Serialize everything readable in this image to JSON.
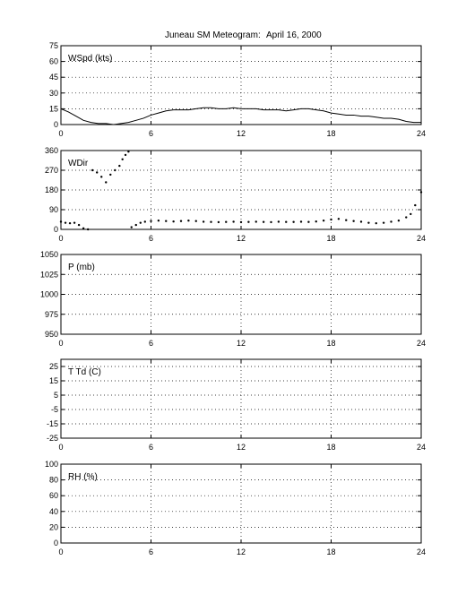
{
  "figure": {
    "title": "Juneau SM Meteogram:",
    "date": "April 16, 2000"
  },
  "chart_data": [
    {
      "type": "line",
      "label": "WSpd (kts)",
      "xlim": [
        0,
        24
      ],
      "ylim": [
        0,
        75
      ],
      "xticks": [
        0,
        6,
        12,
        18,
        24
      ],
      "yticks": [
        0,
        15,
        30,
        45,
        60,
        75
      ],
      "grid": true,
      "series": [
        {
          "x": [
            0,
            0.5,
            1,
            1.5,
            2,
            2.5,
            3,
            3.5,
            4,
            4.5,
            5,
            5.5,
            6,
            6.5,
            7,
            7.5,
            8,
            8.5,
            9,
            9.5,
            10,
            10.5,
            11,
            11.5,
            12,
            12.5,
            13,
            13.5,
            14,
            14.5,
            15,
            15.5,
            16,
            16.5,
            17,
            17.5,
            18,
            18.5,
            19,
            19.5,
            20,
            20.5,
            21,
            21.5,
            22,
            22.5,
            23,
            23.5,
            24
          ],
          "y": [
            15,
            12,
            8,
            4,
            2,
            1,
            1,
            0,
            1,
            2,
            4,
            6,
            9,
            11,
            13,
            14,
            14,
            14,
            15,
            16,
            16,
            15,
            15,
            16,
            15,
            15,
            15,
            14,
            14,
            14,
            13,
            14,
            15,
            15,
            14,
            13,
            11,
            10,
            9,
            9,
            8,
            8,
            7,
            6,
            6,
            5,
            3,
            2,
            2
          ]
        }
      ]
    },
    {
      "type": "scatter",
      "label": "WDir",
      "xlim": [
        0,
        24
      ],
      "ylim": [
        0,
        360
      ],
      "xticks": [
        0,
        6,
        12,
        18,
        24
      ],
      "yticks": [
        0,
        90,
        180,
        270,
        360
      ],
      "grid": true,
      "series": [
        {
          "x": [
            0,
            0.3,
            0.6,
            0.9,
            1.2,
            1.5,
            1.8,
            2.1,
            2.4,
            2.7,
            3.0,
            3.3,
            3.6,
            3.9,
            4.1,
            4.3,
            4.5,
            4.7,
            5.0,
            5.3,
            5.6,
            6.0,
            6.5,
            7,
            7.5,
            8,
            8.5,
            9,
            9.5,
            10,
            10.5,
            11,
            11.5,
            12,
            12.5,
            13,
            13.5,
            14,
            14.5,
            15,
            15.5,
            16,
            16.5,
            17,
            17.5,
            18,
            18.5,
            19,
            19.5,
            20,
            20.5,
            21,
            21.5,
            22,
            22.5,
            23,
            23.3,
            23.6,
            24
          ],
          "y": [
            35,
            30,
            28,
            30,
            20,
            5,
            0,
            270,
            260,
            240,
            215,
            250,
            270,
            290,
            320,
            340,
            355,
            10,
            20,
            30,
            35,
            38,
            40,
            38,
            36,
            38,
            40,
            38,
            35,
            34,
            33,
            34,
            35,
            33,
            34,
            35,
            34,
            33,
            35,
            34,
            34,
            35,
            34,
            36,
            40,
            45,
            48,
            42,
            38,
            35,
            30,
            28,
            30,
            35,
            40,
            55,
            70,
            110,
            170
          ]
        }
      ]
    },
    {
      "type": "line",
      "label": "P (mb)",
      "xlim": [
        0,
        24
      ],
      "ylim": [
        950,
        1050
      ],
      "xticks": [
        0,
        6,
        12,
        18,
        24
      ],
      "yticks": [
        950,
        975,
        1000,
        1025,
        1050
      ],
      "grid": true,
      "series": []
    },
    {
      "type": "line",
      "label": "T Td (C)",
      "xlim": [
        0,
        24
      ],
      "ylim": [
        -25,
        30
      ],
      "xticks": [
        0,
        6,
        12,
        18,
        24
      ],
      "yticks": [
        -25,
        -15,
        -5,
        5,
        15,
        25
      ],
      "grid": true,
      "series": []
    },
    {
      "type": "line",
      "label": "RH (%)",
      "xlim": [
        0,
        24
      ],
      "ylim": [
        0,
        100
      ],
      "xticks": [
        0,
        6,
        12,
        18,
        24
      ],
      "yticks": [
        0,
        20,
        40,
        60,
        80,
        100
      ],
      "grid": true,
      "series": []
    }
  ]
}
